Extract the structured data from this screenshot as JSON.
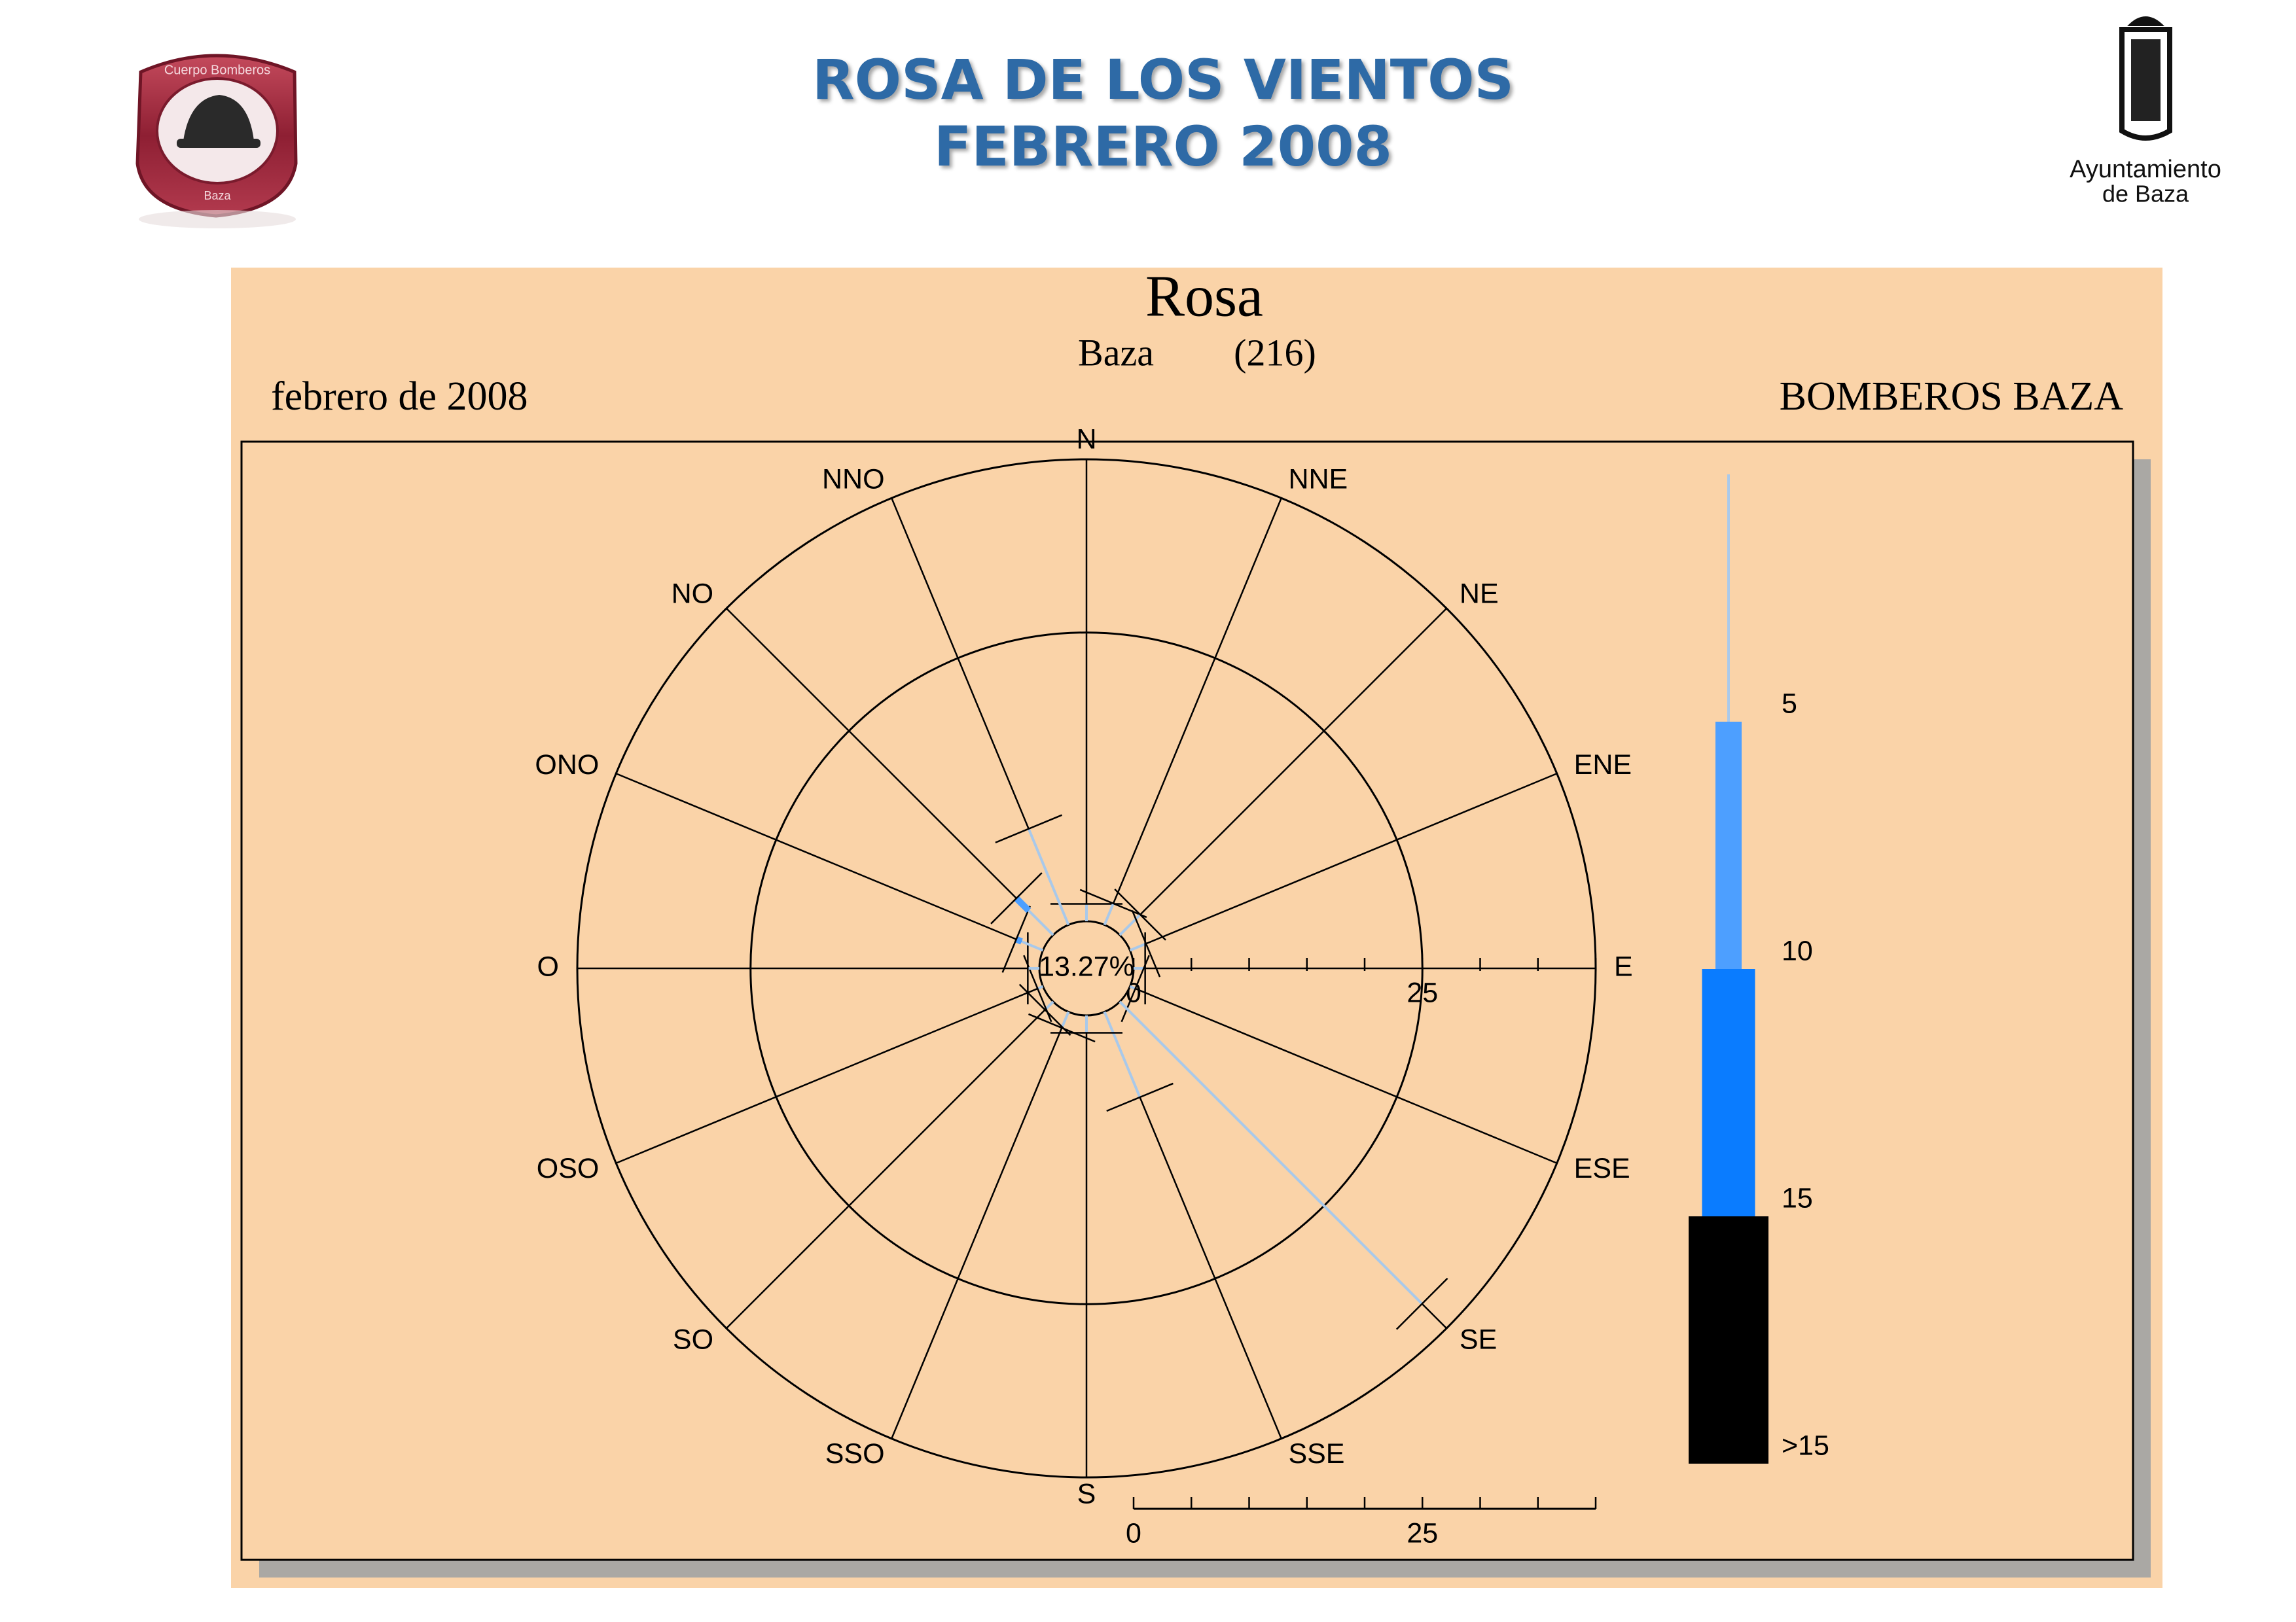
{
  "header": {
    "title_lines": [
      "ROSA DE LOS VIENTOS",
      "FEBRERO 2008"
    ],
    "left_logo": {
      "top": "Cuerpo Bomberos",
      "bottom": "Baza"
    },
    "right_logo": [
      "Ayuntamiento",
      "de Baza"
    ]
  },
  "chart_data": {
    "type": "windrose",
    "title": "Rosa",
    "station": "Baza",
    "station_code": "(216)",
    "period": "febrero de 2008",
    "source": "BOMBEROS BAZA",
    "calm": 13.27,
    "calm_label": "13.27%",
    "categories": [
      "N",
      "NNE",
      "NE",
      "ENE",
      "E",
      "ESE",
      "SE",
      "SSE",
      "S",
      "SSO",
      "SO",
      "OSO",
      "O",
      "ONO",
      "NO",
      "NNO"
    ],
    "rlim": [
      0,
      40
    ],
    "rticks": [
      0,
      25
    ],
    "rminor_ticks": [
      5,
      10,
      15,
      20,
      30,
      35,
      40
    ],
    "series": [
      {
        "name": "5",
        "color": "#a9c9ea",
        "values": [
          1.5,
          2,
          2.5,
          1.5,
          1,
          0.5,
          37,
          8,
          1.5,
          1.5,
          1,
          0.5,
          1,
          2,
          3,
          9
        ]
      },
      {
        "name": "10",
        "color": "#4d9fff",
        "values": [
          0,
          0,
          0,
          0,
          0,
          0,
          0,
          0,
          0,
          0,
          0,
          0,
          0,
          0.5,
          1.5,
          0
        ]
      },
      {
        "name": "15",
        "color": "#0a7cff",
        "values": [
          0,
          0,
          0,
          0,
          0,
          0,
          0,
          0,
          0,
          0,
          0,
          0,
          0,
          0,
          0,
          0
        ]
      },
      {
        "name": ">15",
        "color": "#000000",
        "values": [
          0,
          0,
          0,
          0,
          0,
          0,
          0,
          0,
          0,
          0,
          0,
          0,
          0,
          0,
          0,
          0
        ]
      }
    ]
  }
}
